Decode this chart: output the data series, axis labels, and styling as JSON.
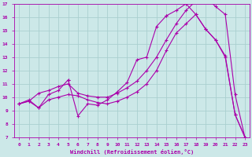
{
  "xlabel": "Windchill (Refroidissement éolien,°C)",
  "bg_color": "#cce8e8",
  "grid_color": "#aacfcf",
  "line_color": "#aa00aa",
  "xlim": [
    -0.5,
    23.5
  ],
  "ylim": [
    7,
    17
  ],
  "xticks": [
    0,
    1,
    2,
    3,
    4,
    5,
    6,
    7,
    8,
    9,
    10,
    11,
    12,
    13,
    14,
    15,
    16,
    17,
    18,
    19,
    20,
    21,
    22,
    23
  ],
  "yticks": [
    7,
    8,
    9,
    10,
    11,
    12,
    13,
    14,
    15,
    16,
    17
  ],
  "line1_x": [
    0,
    1,
    2,
    3,
    4,
    5,
    5,
    6,
    7,
    8,
    9,
    10,
    11,
    12,
    13,
    14,
    15,
    15,
    16,
    17,
    18,
    19,
    20,
    21,
    22,
    23
  ],
  "line1_y": [
    9.5,
    9.8,
    9.2,
    10.2,
    10.5,
    11.3,
    11.3,
    8.6,
    9.5,
    9.4,
    9.8,
    10.4,
    11.1,
    12.8,
    13.0,
    15.3,
    16.1,
    16.1,
    16.5,
    17.0,
    16.2,
    15.1,
    14.3,
    13.1,
    8.7,
    7.0
  ],
  "line2_x": [
    0,
    1,
    2,
    3,
    4,
    5,
    6,
    7,
    8,
    9,
    10,
    11,
    12,
    13,
    14,
    15,
    16,
    17,
    18,
    19,
    20,
    21,
    22,
    23
  ],
  "line2_y": [
    9.5,
    9.7,
    10.3,
    10.5,
    10.8,
    11.0,
    10.3,
    10.1,
    10.0,
    10.0,
    10.3,
    10.7,
    11.2,
    12.0,
    13.0,
    14.3,
    15.5,
    16.5,
    17.2,
    17.5,
    16.8,
    16.2,
    10.2,
    7.0
  ],
  "line3_x": [
    0,
    1,
    2,
    3,
    4,
    5,
    6,
    7,
    8,
    9,
    10,
    11,
    12,
    13,
    14,
    15,
    16,
    17,
    18,
    19,
    20,
    21,
    22,
    23
  ],
  "line3_y": [
    9.5,
    9.7,
    9.2,
    9.8,
    10.0,
    10.2,
    10.1,
    9.8,
    9.6,
    9.5,
    9.7,
    10.0,
    10.4,
    11.0,
    12.0,
    13.5,
    14.8,
    15.5,
    16.2,
    15.1,
    14.3,
    13.0,
    8.7,
    7.0
  ]
}
